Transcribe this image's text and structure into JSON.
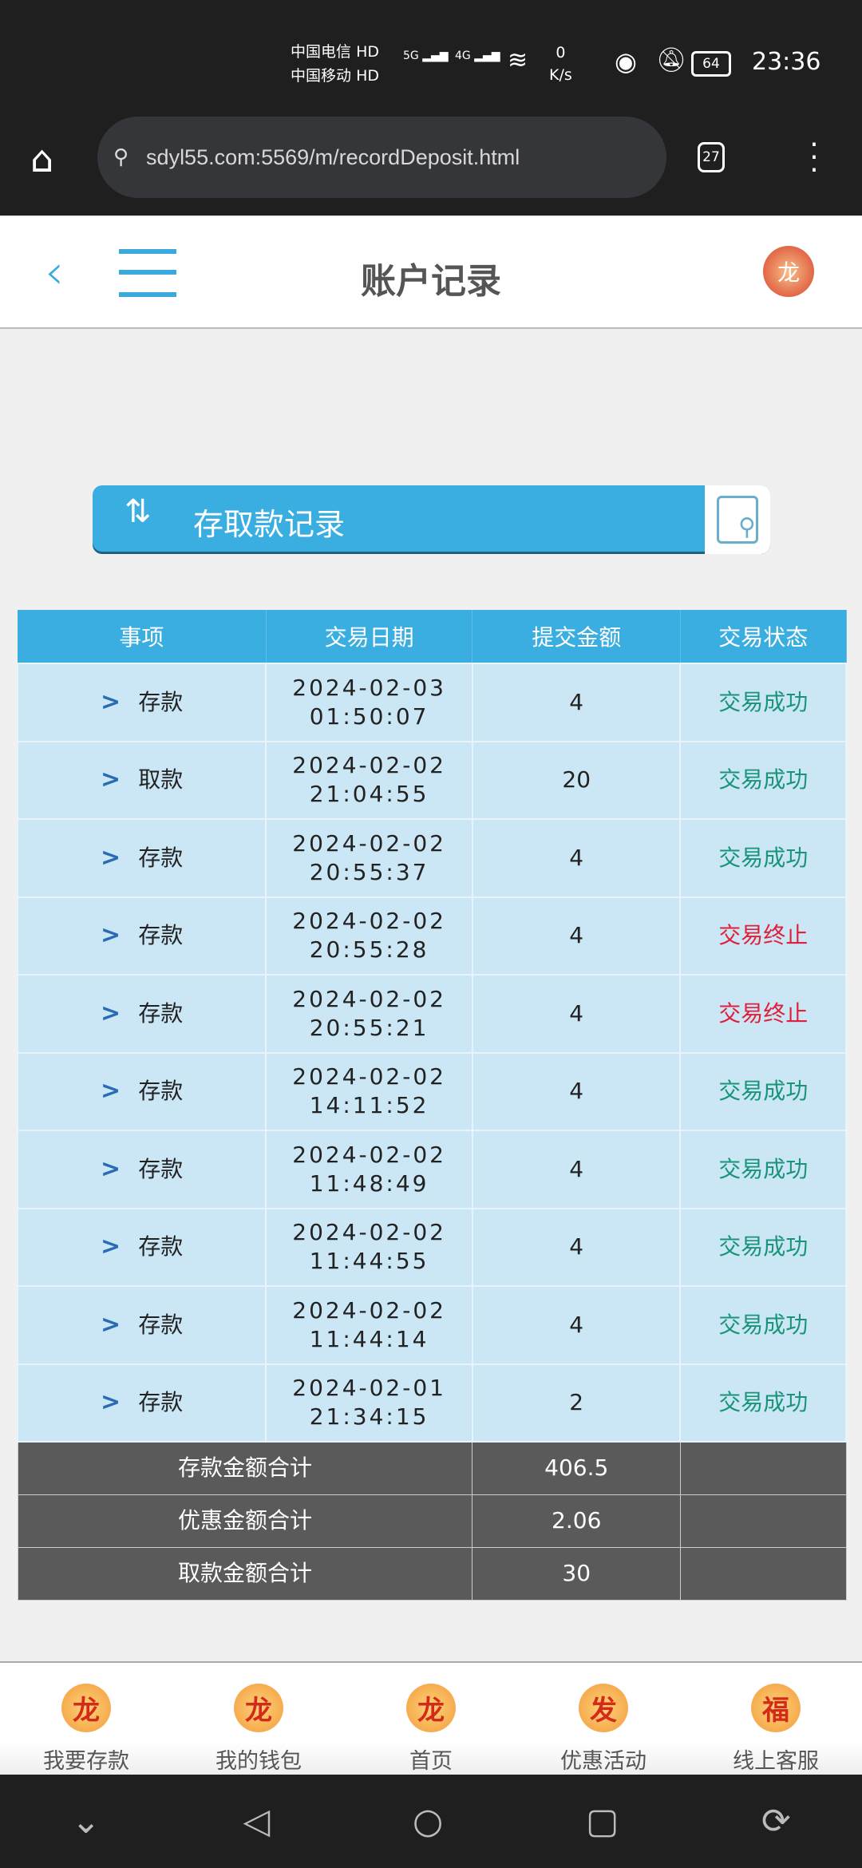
{
  "status_bar": {
    "carrier1": "中国电信",
    "carrier2": "中国移动",
    "hd": "HD",
    "net1": "5G",
    "net2": "4G",
    "speed_value": "0",
    "speed_unit": "K/s",
    "battery": "64",
    "time": "23:36"
  },
  "browser": {
    "url": "sdyl55.com:5569/m/recordDeposit.html",
    "tab_count": "27"
  },
  "header": {
    "title": "账户记录"
  },
  "banner": {
    "title": "存取款记录"
  },
  "table": {
    "columns": [
      "事项",
      "交易日期",
      "提交金额",
      "交易状态"
    ],
    "rows": [
      {
        "type": "存款",
        "date": "2024-02-03",
        "time": "01:50:07",
        "amount": "4",
        "status": "交易成功",
        "status_kind": "ok"
      },
      {
        "type": "取款",
        "date": "2024-02-02",
        "time": "21:04:55",
        "amount": "20",
        "status": "交易成功",
        "status_kind": "ok"
      },
      {
        "type": "存款",
        "date": "2024-02-02",
        "time": "20:55:37",
        "amount": "4",
        "status": "交易成功",
        "status_kind": "ok"
      },
      {
        "type": "存款",
        "date": "2024-02-02",
        "time": "20:55:28",
        "amount": "4",
        "status": "交易终止",
        "status_kind": "stop"
      },
      {
        "type": "存款",
        "date": "2024-02-02",
        "time": "20:55:21",
        "amount": "4",
        "status": "交易终止",
        "status_kind": "stop"
      },
      {
        "type": "存款",
        "date": "2024-02-02",
        "time": "14:11:52",
        "amount": "4",
        "status": "交易成功",
        "status_kind": "ok"
      },
      {
        "type": "存款",
        "date": "2024-02-02",
        "time": "11:48:49",
        "amount": "4",
        "status": "交易成功",
        "status_kind": "ok"
      },
      {
        "type": "存款",
        "date": "2024-02-02",
        "time": "11:44:55",
        "amount": "4",
        "status": "交易成功",
        "status_kind": "ok"
      },
      {
        "type": "存款",
        "date": "2024-02-02",
        "time": "11:44:14",
        "amount": "4",
        "status": "交易成功",
        "status_kind": "ok"
      },
      {
        "type": "存款",
        "date": "2024-02-01",
        "time": "21:34:15",
        "amount": "2",
        "status": "交易成功",
        "status_kind": "ok"
      }
    ],
    "summary": [
      {
        "label": "存款金额合计",
        "value": "406.5"
      },
      {
        "label": "优惠金额合计",
        "value": "2.06"
      },
      {
        "label": "取款金额合计",
        "value": "30"
      }
    ]
  },
  "bottom_nav": [
    {
      "label": "我要存款",
      "icon": "dragon-deposit-icon",
      "glyph": "龙"
    },
    {
      "label": "我的钱包",
      "icon": "dragon-wallet-icon",
      "glyph": "龙"
    },
    {
      "label": "首页",
      "icon": "dragon-home-icon",
      "glyph": "龙"
    },
    {
      "label": "优惠活动",
      "icon": "fa-promo-icon",
      "glyph": "发"
    },
    {
      "label": "线上客服",
      "icon": "fu-service-icon",
      "glyph": "福"
    }
  ],
  "colors": {
    "accent": "#3aaee0",
    "success": "#1a9478",
    "terminated": "#e0203a",
    "row_bg": "#cbe7f5",
    "summary_bg": "#5a5a5a"
  }
}
